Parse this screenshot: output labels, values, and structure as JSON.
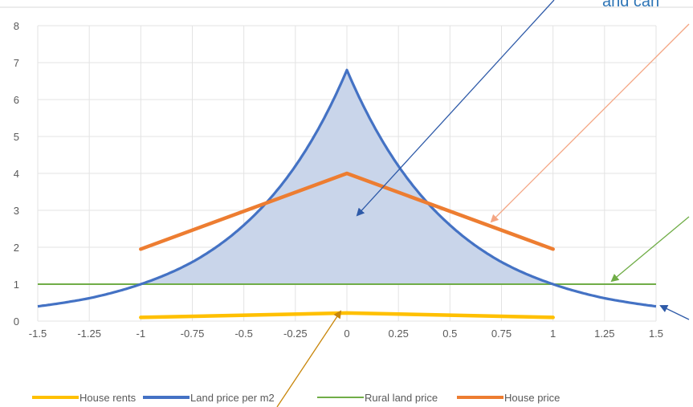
{
  "chart_data": {
    "type": "line",
    "title": "",
    "xlabel": "",
    "ylabel": "",
    "xlim": [
      -1.5,
      1.5
    ],
    "ylim": [
      0,
      8
    ],
    "grid": true,
    "legend_position": "bottom",
    "x_ticks": [
      "-1.5",
      "-1.25",
      "-1",
      "-0.75",
      "-0.5",
      "-0.25",
      "0",
      "0.25",
      "0.5",
      "0.75",
      "1",
      "1.25",
      "1.5"
    ],
    "y_ticks": [
      "0",
      "1",
      "2",
      "3",
      "4",
      "5",
      "6",
      "7",
      "8"
    ],
    "series": [
      {
        "name": "House rents",
        "color": "#ffc000",
        "x": [
          -1,
          0,
          1
        ],
        "y": [
          0.1,
          0.22,
          0.1
        ]
      },
      {
        "name": "Land price per m2",
        "color": "#4472c4",
        "fill": "#c9d5ea",
        "x": [
          -1.5,
          -1.25,
          -1,
          -0.75,
          -0.5,
          -0.25,
          0,
          0.25,
          0.5,
          0.75,
          1,
          1.25,
          1.5
        ],
        "y": [
          0.4,
          0.62,
          1.0,
          1.6,
          2.6,
          4.2,
          6.8,
          4.2,
          2.6,
          1.6,
          1.0,
          0.62,
          0.4
        ]
      },
      {
        "name": "Rural land price",
        "color": "#70ad47",
        "x": [
          -1.5,
          1.5
        ],
        "y": [
          1,
          1
        ]
      },
      {
        "name": "House price",
        "color": "#ed7d31",
        "x": [
          -1,
          0,
          1
        ],
        "y": [
          1.95,
          4.0,
          1.95
        ]
      }
    ],
    "annotations": [
      {
        "text": "and can",
        "color": "#2e75b6"
      }
    ],
    "arrow_colors": [
      "#2e5aa8",
      "#f4a582",
      "#70ad47",
      "#2e5aa8",
      "#c8860a"
    ]
  }
}
